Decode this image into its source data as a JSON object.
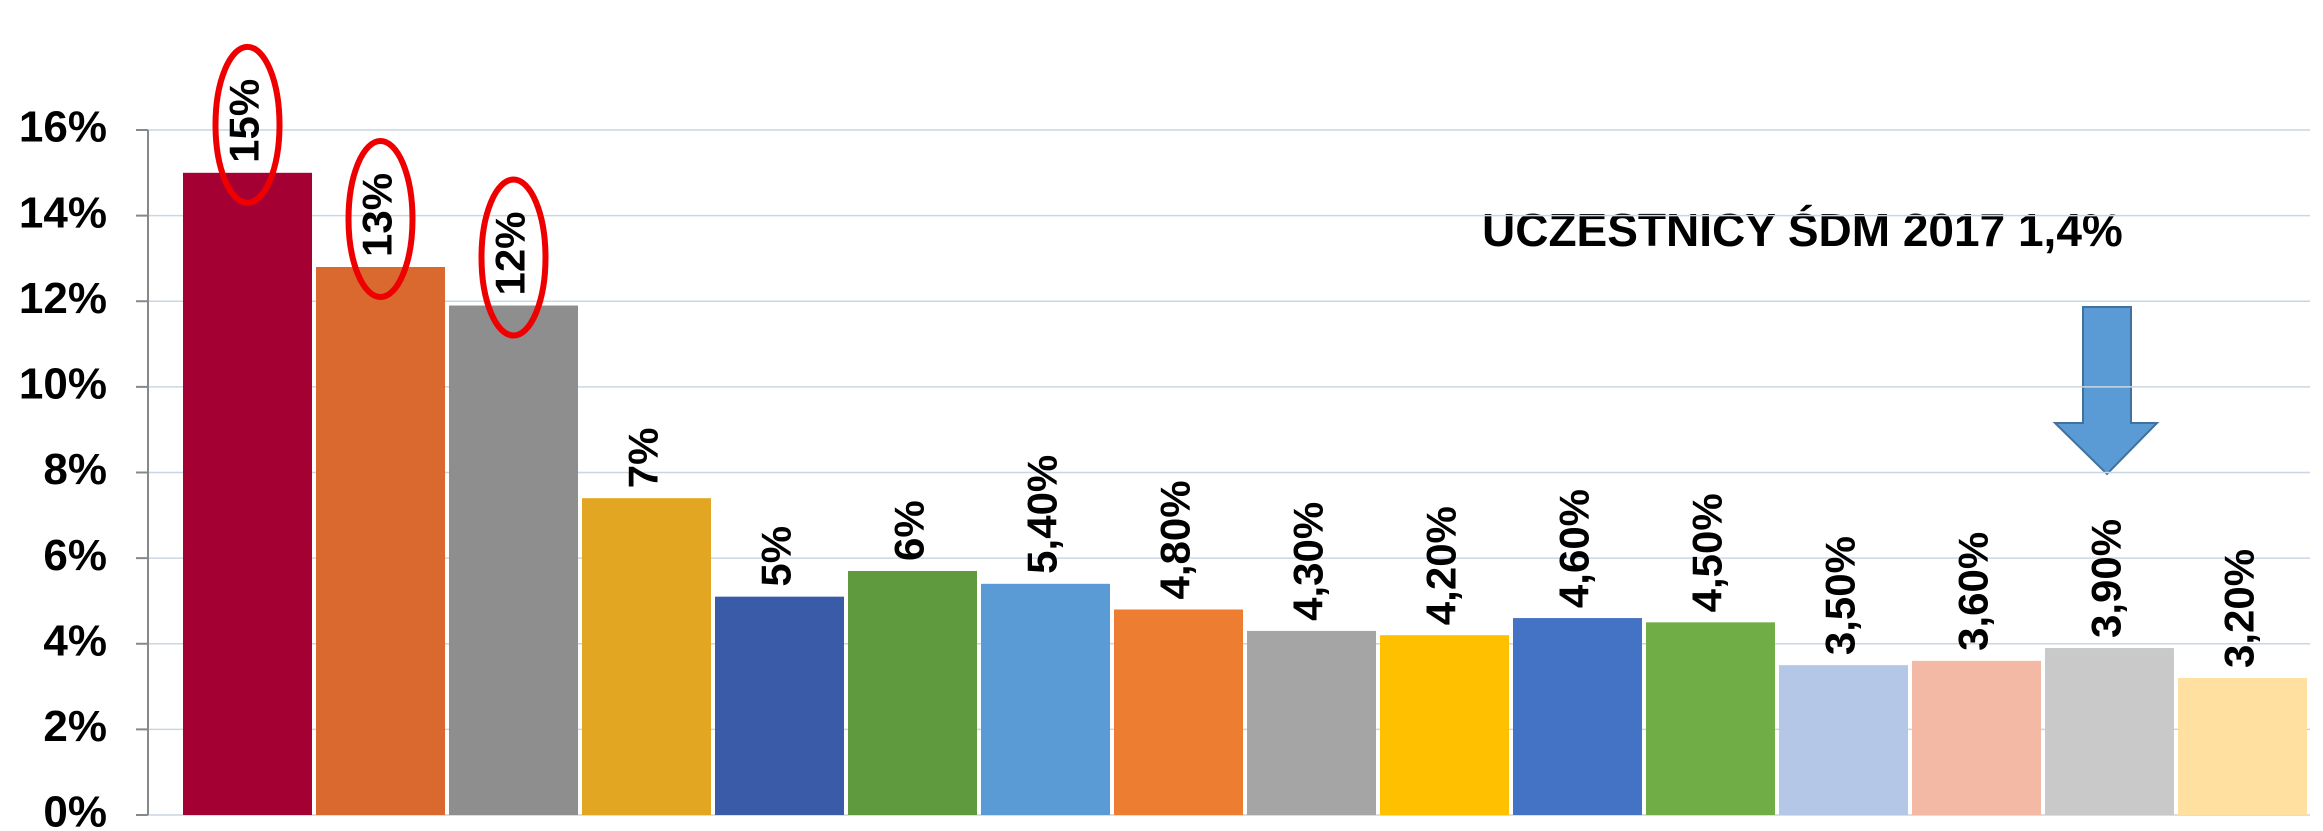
{
  "chart_data": {
    "type": "bar",
    "annotation": "UCZESTNICY ŚDM   2017  1,4%",
    "categories": [
      null,
      null,
      null,
      null,
      null,
      null,
      null,
      null,
      null,
      null,
      null,
      null,
      null,
      null,
      null,
      null
    ],
    "values": [
      15,
      12.8,
      11.9,
      7.4,
      5.1,
      5.7,
      5.4,
      4.8,
      4.3,
      4.2,
      4.6,
      4.5,
      3.5,
      3.6,
      3.9,
      3.2
    ],
    "value_labels": [
      "15%",
      "13%",
      "12%",
      "7%",
      "5%",
      "6%",
      "5,40%",
      "4,80%",
      "4,30%",
      "4,20%",
      "4,60%",
      "4,50%",
      "3,50%",
      "3,60%",
      "3,90%",
      "3,20%"
    ],
    "colors": [
      "#a50034",
      "#d9692e",
      "#8e8e8e",
      "#e2a622",
      "#3a5ca8",
      "#5f9a3f",
      "#5b9bd5",
      "#ed7d31",
      "#a5a5a5",
      "#ffc000",
      "#4472c4",
      "#70ad47",
      "#b4c7e7",
      "#f4b9a5",
      "#c9c9c9",
      "#ffe0a0"
    ],
    "ylim": [
      0,
      16
    ],
    "yticks": [
      {
        "value": 0,
        "label": "0%"
      },
      {
        "value": 2,
        "label": "2%"
      },
      {
        "value": 4,
        "label": "4%"
      },
      {
        "value": 6,
        "label": "6%"
      },
      {
        "value": 8,
        "label": "8%"
      },
      {
        "value": 10,
        "label": "10%"
      },
      {
        "value": 12,
        "label": "12%"
      },
      {
        "value": 14,
        "label": "14%"
      },
      {
        "value": 16,
        "label": "16%"
      }
    ],
    "grid": true
  }
}
